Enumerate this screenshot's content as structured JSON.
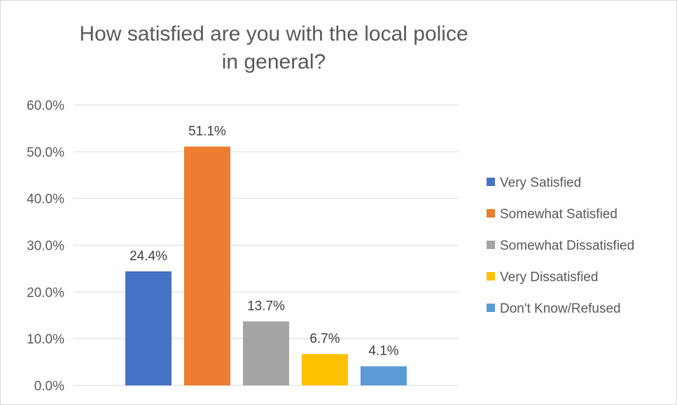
{
  "chart_data": {
    "type": "bar",
    "title": "How satisfied are you with the local police in general?",
    "categories": [
      "Very Satisfied",
      "Somewhat Satisfied",
      "Somewhat Dissatisfied",
      "Very Dissatisfied",
      "Don't Know/Refused"
    ],
    "values": [
      24.4,
      51.1,
      13.7,
      6.7,
      4.1
    ],
    "data_labels": [
      "24.4%",
      "51.1%",
      "13.7%",
      "6.7%",
      "4.1%"
    ],
    "colors": [
      "#4472c4",
      "#ed7d31",
      "#a5a5a5",
      "#ffc000",
      "#5b9bd5"
    ],
    "ylim": [
      0,
      60
    ],
    "yticks": [
      0,
      10,
      20,
      30,
      40,
      50,
      60
    ],
    "ytick_labels": [
      "0.0%",
      "10.0%",
      "20.0%",
      "30.0%",
      "40.0%",
      "50.0%",
      "60.0%"
    ],
    "xlabel": "",
    "ylabel": "",
    "grid": true,
    "legend_position": "right"
  }
}
